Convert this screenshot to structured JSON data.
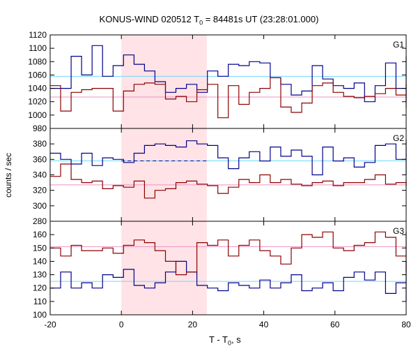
{
  "chart_data": {
    "type": "line",
    "title": {
      "prefix": "KONUS-WIND 020512 T",
      "sub": "0",
      "suffix": " = 84481s UT (23:28:01.000)"
    },
    "xlabel": {
      "prefix": "T - T",
      "sub": "0",
      "suffix": ", s"
    },
    "ylabel": "counts / sec",
    "xlim": [
      -20,
      80
    ],
    "xticks": [
      -20,
      0,
      20,
      40,
      60,
      80
    ],
    "shaded_interval": [
      0,
      24
    ],
    "bin_width": 2.944,
    "colors": {
      "blue": "#00008b",
      "red": "#8b0000",
      "lightblue": "#6fd6ff",
      "pink": "#ee90c2",
      "shade": "#ffe3e6"
    },
    "panels": [
      {
        "label": "G1",
        "ylim": [
          980,
          1120
        ],
        "yticks": [
          980,
          1000,
          1020,
          1040,
          1060,
          1080,
          1100,
          1120
        ],
        "background_levels": [
          {
            "series": "blue",
            "value": 1058
          },
          {
            "series": "red",
            "value": 1027
          }
        ],
        "series": [
          {
            "color": "blue",
            "x0": -20,
            "values": [
              1040,
              1040,
              1088,
              1060,
              1104,
              1058,
              1074,
              1090,
              1076,
              1066,
              1050,
              1034,
              1040,
              1046,
              1034,
              1066,
              1058,
              1076,
              1074,
              1080,
              1078,
              1056,
              1046,
              1030,
              1036,
              1074,
              1054,
              1044,
              1040,
              1048,
              1020,
              1044,
              1078,
              1040,
              1064,
              1034,
              1088,
              1078,
              1068,
              1072,
              1056,
              1072,
              1058,
              1020,
              1066
            ]
          },
          {
            "color": "red",
            "x0": -20,
            "values": [
              1044,
              1006,
              1034,
              1038,
              1040,
              1040,
              1006,
              1036,
              1046,
              1048,
              1046,
              1024,
              1028,
              1020,
              1038,
              1046,
              996,
              1044,
              1016,
              1034,
              1040,
              1056,
              1012,
              1004,
              1018,
              1044,
              1048,
              1034,
              1028,
              1026,
              1028,
              1032,
              1040,
              1030,
              1040,
              1044,
              1028,
              1020,
              1020,
              1010,
              1016,
              1046,
              1024,
              1040,
              1040
            ]
          }
        ]
      },
      {
        "label": "G2",
        "ylim": [
          280,
          400
        ],
        "yticks": [
          280,
          300,
          320,
          340,
          360,
          380
        ],
        "background_levels": [
          {
            "series": "blue",
            "value": 358
          },
          {
            "series": "red",
            "value": 327
          }
        ],
        "series": [
          {
            "color": "blue",
            "x0": -20,
            "values": [
              368,
              360,
              354,
              368,
              352,
              362,
              360,
              356,
              368,
              378,
              380,
              378,
              376,
              384,
              380,
              378,
              362,
              348,
              362,
              370,
              358,
              376,
              364,
              372,
              364,
              340,
              376,
              358,
              362,
              350,
              356,
              378,
              380,
              360,
              376,
              354,
              374,
              386,
              362,
              364,
              358,
              340,
              374,
              360,
              352
            ]
          },
          {
            "color": "red",
            "x0": -20,
            "values": [
              338,
              354,
              334,
              330,
              332,
              322,
              326,
              324,
              332,
              310,
              320,
              322,
              330,
              332,
              328,
              326,
              316,
              324,
              334,
              330,
              340,
              330,
              334,
              328,
              326,
              330,
              332,
              326,
              330,
              330,
              334,
              340,
              328,
              330,
              334,
              326,
              326,
              330,
              326,
              324,
              328,
              328,
              330,
              326,
              330
            ]
          }
        ]
      },
      {
        "label": "G3",
        "ylim": [
          100,
          170
        ],
        "yticks": [
          100,
          110,
          120,
          130,
          140,
          150,
          160
        ],
        "background_levels": [
          {
            "series": "blue",
            "value": 125
          },
          {
            "series": "red",
            "value": 151
          }
        ],
        "series": [
          {
            "color": "blue",
            "x0": -20,
            "values": [
              120,
              132,
              120,
              124,
              120,
              130,
              128,
              134,
              122,
              120,
              124,
              132,
              140,
              132,
              122,
              120,
              118,
              124,
              122,
              120,
              126,
              120,
              124,
              130,
              118,
              120,
              124,
              118,
              128,
              132,
              126,
              132,
              116,
              124,
              128,
              122,
              116,
              120,
              112,
              126,
              118,
              126,
              128,
              110,
              140
            ]
          },
          {
            "color": "red",
            "x0": -20,
            "values": [
              150,
              144,
              152,
              148,
              148,
              150,
              146,
              152,
              156,
              154,
              148,
              140,
              130,
              132,
              154,
              152,
              156,
              144,
              152,
              156,
              148,
              144,
              138,
              150,
              160,
              158,
              162,
              150,
              148,
              152,
              154,
              162,
              158,
              144,
              160,
              146,
              156,
              154,
              160,
              162,
              150,
              132,
              160,
              162,
              140
            ]
          }
        ]
      }
    ]
  }
}
